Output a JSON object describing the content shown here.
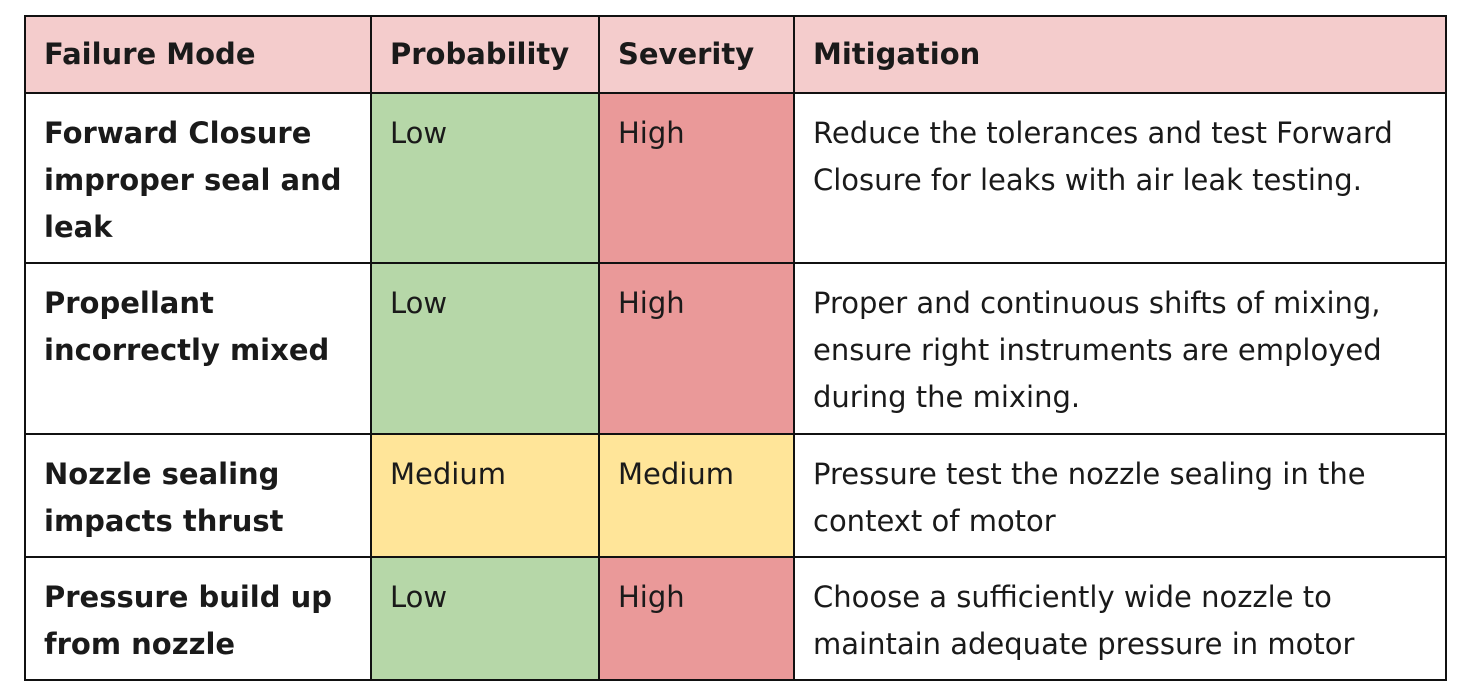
{
  "colors": {
    "header_bg": "#f4cccc",
    "low": "#b6d7a8",
    "high": "#ea9999",
    "medium": "#ffe599"
  },
  "table": {
    "headers": [
      "Failure Mode",
      "Probability",
      "Severity",
      "Mitigation"
    ],
    "rows": [
      {
        "failure_mode": "Forward Closure improper seal and leak",
        "probability": "Low",
        "severity": "High",
        "mitigation": "Reduce the tolerances and test Forward Closure for leaks with air leak testing."
      },
      {
        "failure_mode": "Propellant incorrectly mixed",
        "probability": "Low",
        "severity": "High",
        "mitigation": "Proper and continuous shifts of mixing, ensure right instruments are employed during the mixing."
      },
      {
        "failure_mode": "Nozzle sealing impacts thrust",
        "probability": "Medium",
        "severity": "Medium",
        "mitigation": "Pressure test the nozzle sealing in the context of motor"
      },
      {
        "failure_mode": "Pressure build up from nozzle",
        "probability": "Low",
        "severity": "High",
        "mitigation": "Choose a sufficiently wide nozzle to maintain adequate pressure in motor"
      }
    ]
  }
}
